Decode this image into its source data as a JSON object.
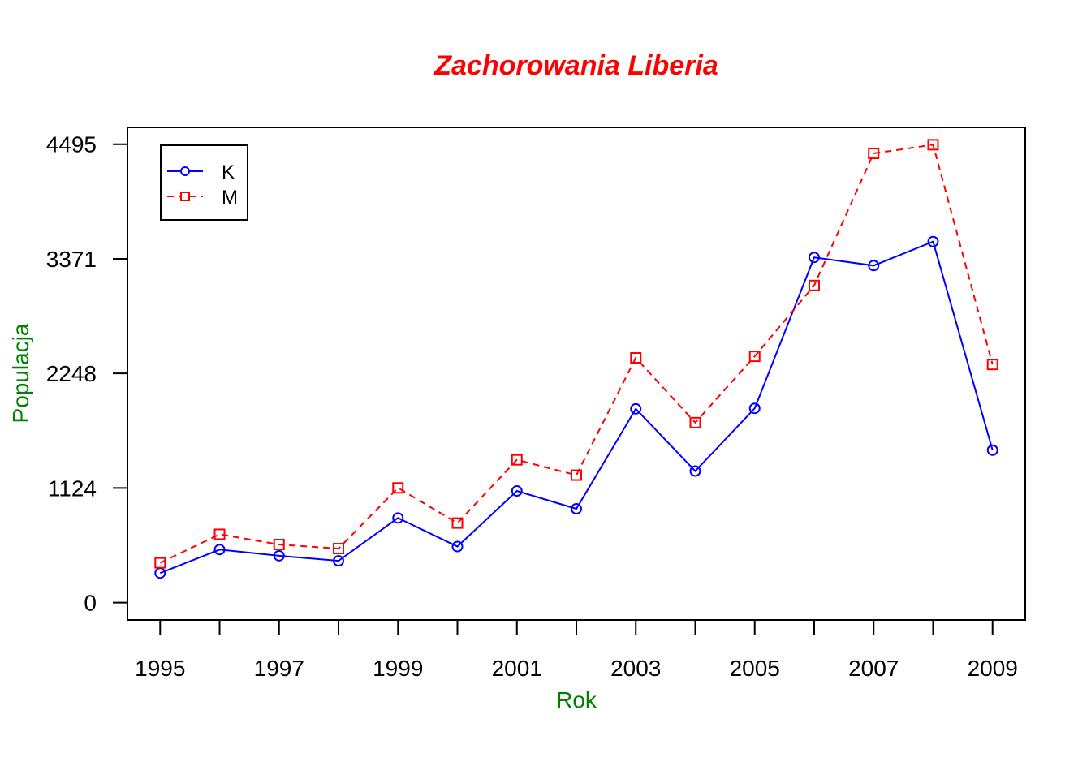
{
  "chart_data": {
    "type": "line",
    "title": "Zachorowania Liberia",
    "xlabel": "Rok",
    "ylabel": "Populacja",
    "x": [
      1995,
      1996,
      1997,
      1998,
      1999,
      2000,
      2001,
      2002,
      2003,
      2004,
      2005,
      2006,
      2007,
      2008,
      2009
    ],
    "x_tick_labels": [
      "1995",
      "1997",
      "1999",
      "2001",
      "2003",
      "2005",
      "2007",
      "2009"
    ],
    "y_ticks": [
      0,
      1124,
      2248,
      3371,
      4495
    ],
    "ylim": [
      -170,
      4660
    ],
    "xlim": [
      1994.45,
      2009.55
    ],
    "series": [
      {
        "name": "K",
        "color": "#0000ff",
        "linestyle": "solid",
        "marker": "circle",
        "values": [
          290,
          520,
          460,
          410,
          830,
          550,
          1095,
          920,
          1900,
          1290,
          1905,
          3385,
          3305,
          3540,
          1495
        ]
      },
      {
        "name": "M",
        "color": "#ff0000",
        "linestyle": "dashed",
        "marker": "square",
        "values": [
          390,
          670,
          570,
          530,
          1125,
          780,
          1400,
          1250,
          2400,
          1765,
          2415,
          3110,
          4405,
          4490,
          2335
        ]
      }
    ],
    "title_color": "#ff0000",
    "axis_label_color": "#008000",
    "legend_position": "top-left",
    "grid": false
  }
}
